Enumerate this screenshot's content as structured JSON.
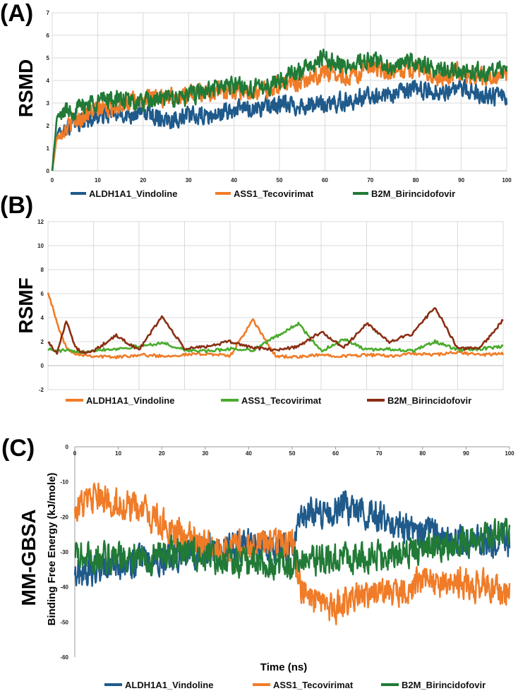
{
  "chart_data": [
    {
      "panel_label": "(A)",
      "side_title": "RSMD",
      "type": "line",
      "x_ticks": [
        0,
        10,
        20,
        30,
        40,
        50,
        60,
        70,
        80,
        90,
        100
      ],
      "y_ticks": [
        0,
        1,
        2,
        3,
        4,
        5,
        6,
        7
      ],
      "xlim": [
        0,
        100
      ],
      "ylim": [
        0,
        7
      ],
      "grid": true,
      "legend": "bottom",
      "series": [
        {
          "name": "ALDH1A1_Vindoline",
          "color": "#1f5a8b",
          "x": [
            0,
            1,
            3,
            5,
            8,
            12,
            16,
            20,
            25,
            30,
            35,
            40,
            45,
            50,
            55,
            60,
            65,
            70,
            75,
            80,
            85,
            90,
            95,
            100
          ],
          "values": [
            0,
            1.6,
            1.9,
            2.1,
            2.3,
            2.5,
            2.5,
            2.6,
            2.3,
            2.4,
            2.4,
            2.7,
            2.8,
            2.9,
            2.9,
            2.9,
            3.1,
            3.3,
            3.4,
            3.6,
            3.5,
            3.6,
            3.4,
            3.2
          ]
        },
        {
          "name": "ASS1_Tecovirimat",
          "color": "#f07c28",
          "x": [
            0,
            1,
            3,
            5,
            8,
            12,
            16,
            20,
            25,
            30,
            35,
            40,
            45,
            50,
            55,
            60,
            65,
            70,
            75,
            80,
            85,
            90,
            95,
            100
          ],
          "values": [
            0,
            1.5,
            1.9,
            2.2,
            2.6,
            2.8,
            3.0,
            3.1,
            3.3,
            3.4,
            3.5,
            3.6,
            3.5,
            3.8,
            4.0,
            4.4,
            4.2,
            4.5,
            4.3,
            4.6,
            4.2,
            4.4,
            4.1,
            4.2
          ]
        },
        {
          "name": "B2M_Birincidofovir",
          "color": "#217a36",
          "x": [
            0,
            1,
            3,
            5,
            8,
            12,
            16,
            20,
            25,
            30,
            35,
            40,
            45,
            50,
            55,
            60,
            65,
            70,
            75,
            80,
            85,
            90,
            95,
            100
          ],
          "values": [
            0,
            2.3,
            2.7,
            2.7,
            3.0,
            3.2,
            3.1,
            3.0,
            3.2,
            3.3,
            3.6,
            3.8,
            3.6,
            4.0,
            4.5,
            5.0,
            4.6,
            4.9,
            4.6,
            4.8,
            4.4,
            4.5,
            4.3,
            4.4
          ]
        }
      ]
    },
    {
      "panel_label": "(B)",
      "side_title": "RSMF",
      "type": "line",
      "y_ticks": [
        -2,
        0,
        2,
        4,
        6,
        8,
        10,
        12
      ],
      "ylim": [
        -2,
        12
      ],
      "grid": true,
      "legend": "bottom",
      "series": [
        {
          "name": "ALDH1A1_Vindoline",
          "color": "#f07c28",
          "x": [
            0,
            2,
            4,
            6,
            8,
            10,
            15,
            20,
            25,
            30,
            35,
            40,
            45,
            50,
            55,
            60,
            65,
            70,
            75,
            80,
            85,
            90,
            95,
            100
          ],
          "values": [
            6.2,
            3.5,
            1.5,
            1.0,
            0.9,
            0.8,
            0.7,
            0.9,
            0.8,
            0.9,
            1.0,
            0.8,
            3.8,
            0.8,
            0.7,
            0.9,
            0.8,
            0.9,
            0.8,
            1.0,
            0.9,
            1.1,
            0.9,
            1.0
          ]
        },
        {
          "name": "ASS1_Tecovirimat",
          "color": "#4aab2c",
          "x": [
            0,
            2,
            4,
            6,
            8,
            10,
            15,
            20,
            25,
            30,
            35,
            40,
            45,
            50,
            55,
            60,
            65,
            70,
            75,
            80,
            85,
            90,
            95,
            100
          ],
          "values": [
            1.4,
            1.2,
            1.3,
            1.1,
            1.2,
            1.3,
            1.4,
            1.6,
            1.9,
            1.3,
            1.2,
            1.4,
            1.3,
            2.4,
            3.5,
            1.2,
            2.2,
            1.3,
            1.4,
            1.2,
            2.0,
            1.3,
            1.4,
            1.6
          ]
        },
        {
          "name": "B2M_Birincidofovir",
          "color": "#8b2e14",
          "x": [
            0,
            2,
            4,
            6,
            8,
            10,
            15,
            20,
            25,
            30,
            35,
            40,
            45,
            50,
            55,
            60,
            65,
            70,
            75,
            80,
            85,
            90,
            95,
            100
          ],
          "values": [
            2.0,
            1.0,
            3.8,
            1.5,
            1.0,
            1.2,
            2.5,
            1.3,
            4.1,
            1.4,
            1.6,
            2.0,
            1.5,
            1.3,
            1.6,
            2.8,
            1.5,
            3.5,
            2.0,
            2.6,
            4.9,
            1.4,
            1.5,
            3.8
          ]
        }
      ]
    },
    {
      "panel_label": "(C)",
      "side_title": "MM-GBSA",
      "type": "line",
      "x_ticks": [
        0,
        10,
        20,
        30,
        40,
        50,
        60,
        70,
        80,
        90,
        100
      ],
      "y_ticks": [
        0,
        -10,
        -20,
        -30,
        -40,
        -50,
        -60
      ],
      "xlim": [
        0,
        100
      ],
      "ylim": [
        -60,
        0
      ],
      "xlabel": "Time (ns)",
      "ylabel": "Binding Free Energy (kJ/mole)",
      "grid": false,
      "legend": "bottom",
      "series": [
        {
          "name": "ALDH1A1_Vindoline",
          "color": "#1f5a8b",
          "x": [
            0,
            5,
            10,
            15,
            20,
            25,
            30,
            35,
            40,
            45,
            50,
            52,
            55,
            60,
            65,
            70,
            75,
            80,
            85,
            90,
            95,
            100
          ],
          "values": [
            -36,
            -35,
            -34,
            -33,
            -32,
            -30,
            -30,
            -29,
            -28,
            -28,
            -29,
            -20,
            -19,
            -18,
            -17,
            -20,
            -23,
            -24,
            -26,
            -27,
            -27,
            -27
          ]
        },
        {
          "name": "ASS1_Tecovirimat",
          "color": "#f07c28",
          "x": [
            0,
            5,
            10,
            15,
            20,
            25,
            30,
            35,
            40,
            45,
            50,
            52,
            55,
            60,
            65,
            70,
            75,
            80,
            85,
            90,
            95,
            100
          ],
          "values": [
            -17,
            -15,
            -16,
            -18,
            -22,
            -26,
            -28,
            -29,
            -28,
            -27,
            -27,
            -40,
            -45,
            -46,
            -42,
            -42,
            -41,
            -38,
            -39,
            -39,
            -40,
            -42
          ]
        },
        {
          "name": "B2M_Birincidofovir",
          "color": "#217a36",
          "x": [
            0,
            5,
            10,
            15,
            20,
            25,
            30,
            35,
            40,
            45,
            50,
            52,
            55,
            60,
            65,
            70,
            75,
            80,
            85,
            90,
            95,
            100
          ],
          "values": [
            -31,
            -32,
            -31,
            -32,
            -31,
            -30,
            -31,
            -32,
            -33,
            -33,
            -33,
            -33,
            -32,
            -32,
            -31,
            -31,
            -30,
            -29,
            -28,
            -27,
            -26,
            -25
          ]
        }
      ]
    }
  ]
}
